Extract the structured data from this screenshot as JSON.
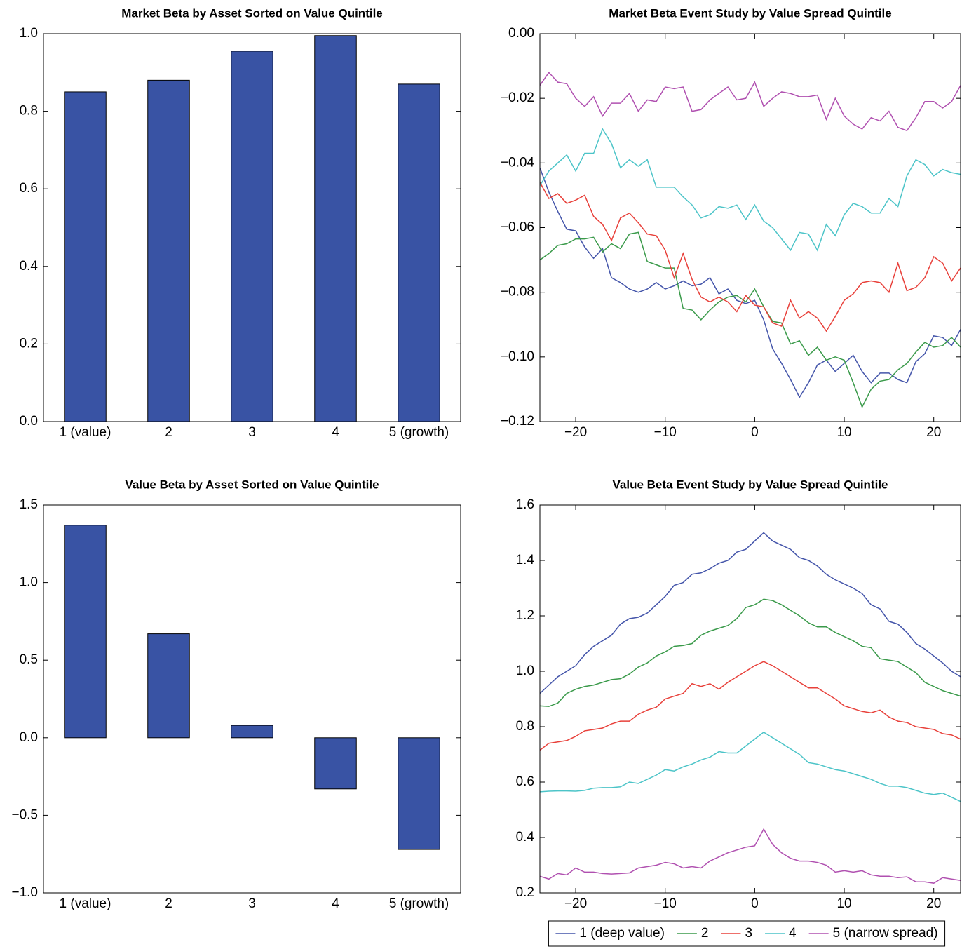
{
  "chart_data": [
    {
      "type": "bar",
      "title": "Market Beta by Asset Sorted on Value Quintile",
      "categories": [
        "1 (value)",
        "2",
        "3",
        "4",
        "5 (growth)"
      ],
      "values": [
        0.85,
        0.88,
        0.955,
        0.995,
        0.87
      ],
      "color": "#3953a4",
      "ylim": [
        0,
        1
      ],
      "yticks": [
        {
          "value": 0,
          "label": "0.0"
        },
        0.2,
        0.4,
        0.6,
        0.8,
        {
          "value": 1,
          "label": "1.0"
        }
      ]
    },
    {
      "type": "line",
      "title": "Market Beta Event Study by Value Spread Quintile",
      "x": [
        -24,
        -23,
        -22,
        -21,
        -20,
        -19,
        -18,
        -17,
        -16,
        -15,
        -14,
        -13,
        -12,
        -11,
        -10,
        -9,
        -8,
        -7,
        -6,
        -5,
        -4,
        -3,
        -2,
        -1,
        0,
        1,
        2,
        3,
        4,
        5,
        6,
        7,
        8,
        9,
        10,
        11,
        12,
        13,
        14,
        15,
        16,
        17,
        18,
        19,
        20,
        21,
        22,
        23
      ],
      "series": [
        {
          "color": "#4455aa",
          "values": [
            -0.0415,
            -0.049,
            -0.055,
            -0.0605,
            -0.061,
            -0.066,
            -0.0695,
            -0.0665,
            -0.0755,
            -0.077,
            -0.079,
            -0.08,
            -0.079,
            -0.077,
            -0.079,
            -0.078,
            -0.0765,
            -0.078,
            -0.0775,
            -0.0755,
            -0.0805,
            -0.079,
            -0.0825,
            -0.0835,
            -0.0825,
            -0.0885,
            -0.0975,
            -0.102,
            -0.107,
            -0.1125,
            -0.108,
            -0.1025,
            -0.101,
            -0.1045,
            -0.102,
            -0.0995,
            -0.1045,
            -0.108,
            -0.105,
            -0.105,
            -0.107,
            -0.108,
            -0.1015,
            -0.099,
            -0.0935,
            -0.094,
            -0.0965,
            -0.0915
          ]
        },
        {
          "color": "#3a9a4a",
          "values": [
            -0.07,
            -0.068,
            -0.0655,
            -0.065,
            -0.0635,
            -0.0635,
            -0.063,
            -0.0675,
            -0.065,
            -0.0665,
            -0.062,
            -0.0615,
            -0.0705,
            -0.0715,
            -0.0725,
            -0.0725,
            -0.085,
            -0.0855,
            -0.0885,
            -0.0855,
            -0.083,
            -0.0815,
            -0.081,
            -0.083,
            -0.079,
            -0.0845,
            -0.089,
            -0.0895,
            -0.096,
            -0.095,
            -0.0995,
            -0.097,
            -0.101,
            -0.1,
            -0.101,
            -0.108,
            -0.1155,
            -0.11,
            -0.1075,
            -0.107,
            -0.104,
            -0.102,
            -0.0985,
            -0.0955,
            -0.097,
            -0.0965,
            -0.094,
            -0.097
          ]
        },
        {
          "color": "#e8403a",
          "values": [
            -0.046,
            -0.051,
            -0.0495,
            -0.0525,
            -0.0515,
            -0.05,
            -0.0565,
            -0.059,
            -0.064,
            -0.057,
            -0.0555,
            -0.0585,
            -0.062,
            -0.0625,
            -0.067,
            -0.0755,
            -0.068,
            -0.076,
            -0.0815,
            -0.083,
            -0.0815,
            -0.083,
            -0.086,
            -0.081,
            -0.084,
            -0.0845,
            -0.0895,
            -0.0905,
            -0.0825,
            -0.088,
            -0.086,
            -0.088,
            -0.092,
            -0.0875,
            -0.0825,
            -0.0805,
            -0.077,
            -0.0765,
            -0.077,
            -0.08,
            -0.071,
            -0.0795,
            -0.0785,
            -0.0755,
            -0.069,
            -0.071,
            -0.0765,
            -0.0725
          ]
        },
        {
          "color": "#4cc4c8",
          "values": [
            -0.047,
            -0.0425,
            -0.04,
            -0.0375,
            -0.0425,
            -0.037,
            -0.037,
            -0.0295,
            -0.034,
            -0.0415,
            -0.039,
            -0.041,
            -0.039,
            -0.0475,
            -0.0475,
            -0.0475,
            -0.0505,
            -0.053,
            -0.057,
            -0.056,
            -0.0535,
            -0.054,
            -0.053,
            -0.0575,
            -0.053,
            -0.058,
            -0.06,
            -0.0635,
            -0.067,
            -0.0615,
            -0.062,
            -0.067,
            -0.059,
            -0.0625,
            -0.056,
            -0.0525,
            -0.0535,
            -0.0555,
            -0.0555,
            -0.051,
            -0.0535,
            -0.044,
            -0.039,
            -0.0405,
            -0.044,
            -0.042,
            -0.043,
            -0.0435
          ]
        },
        {
          "color": "#b050b0",
          "values": [
            -0.016,
            -0.012,
            -0.015,
            -0.0155,
            -0.02,
            -0.0225,
            -0.0195,
            -0.0255,
            -0.0215,
            -0.0215,
            -0.0185,
            -0.024,
            -0.0205,
            -0.021,
            -0.0165,
            -0.017,
            -0.0165,
            -0.024,
            -0.0235,
            -0.0205,
            -0.0185,
            -0.0165,
            -0.0205,
            -0.02,
            -0.015,
            -0.0225,
            -0.02,
            -0.018,
            -0.0185,
            -0.0195,
            -0.0195,
            -0.019,
            -0.0265,
            -0.02,
            -0.0255,
            -0.028,
            -0.0295,
            -0.026,
            -0.027,
            -0.024,
            -0.029,
            -0.03,
            -0.026,
            -0.021,
            -0.021,
            -0.023,
            -0.021,
            -0.016
          ]
        }
      ],
      "xlim": [
        -24,
        23
      ],
      "xticks": [
        {
          "value": -20,
          "label": "−20"
        },
        {
          "value": -10,
          "label": "−10"
        },
        0,
        10,
        20
      ],
      "ylim": [
        -0.12,
        0
      ],
      "yticks": [
        {
          "value": -0.12,
          "label": "−0.12"
        },
        {
          "value": -0.1,
          "label": "−0.10"
        },
        {
          "value": -0.08,
          "label": "−0.08"
        },
        {
          "value": -0.06,
          "label": "−0.06"
        },
        {
          "value": -0.04,
          "label": "−0.04"
        },
        {
          "value": -0.02,
          "label": "−0.02"
        },
        {
          "value": 0,
          "label": "0.00"
        }
      ]
    },
    {
      "type": "bar",
      "title": "Value Beta by Asset Sorted on Value Quintile",
      "categories": [
        "1 (value)",
        "2",
        "3",
        "4",
        "5 (growth)"
      ],
      "values": [
        1.37,
        0.67,
        0.08,
        -0.33,
        -0.72
      ],
      "color": "#3953a4",
      "ylim": [
        -1,
        1.5
      ],
      "yticks": [
        {
          "value": -1,
          "label": "−1.0"
        },
        {
          "value": -0.5,
          "label": "−0.5"
        },
        {
          "value": 0,
          "label": "0.0"
        },
        0.5,
        {
          "value": 1,
          "label": "1.0"
        },
        1.5
      ]
    },
    {
      "type": "line",
      "title": "Value Beta Event Study by Value Spread Quintile",
      "x": [
        -24,
        -23,
        -22,
        -21,
        -20,
        -19,
        -18,
        -17,
        -16,
        -15,
        -14,
        -13,
        -12,
        -11,
        -10,
        -9,
        -8,
        -7,
        -6,
        -5,
        -4,
        -3,
        -2,
        -1,
        0,
        1,
        2,
        3,
        4,
        5,
        6,
        7,
        8,
        9,
        10,
        11,
        12,
        13,
        14,
        15,
        16,
        17,
        18,
        19,
        20,
        21,
        22,
        23
      ],
      "series": [
        {
          "name": "1 (deep value)",
          "color": "#4455aa",
          "values": [
            0.92,
            0.95,
            0.98,
            1.0,
            1.02,
            1.06,
            1.09,
            1.11,
            1.13,
            1.17,
            1.19,
            1.195,
            1.21,
            1.24,
            1.27,
            1.31,
            1.32,
            1.35,
            1.355,
            1.37,
            1.39,
            1.4,
            1.43,
            1.44,
            1.47,
            1.5,
            1.47,
            1.455,
            1.44,
            1.41,
            1.4,
            1.38,
            1.35,
            1.33,
            1.315,
            1.3,
            1.28,
            1.24,
            1.225,
            1.18,
            1.17,
            1.14,
            1.1,
            1.08,
            1.055,
            1.03,
            1.0,
            0.98
          ]
        },
        {
          "name": "2",
          "color": "#3a9a4a",
          "values": [
            0.875,
            0.873,
            0.885,
            0.92,
            0.935,
            0.945,
            0.95,
            0.96,
            0.97,
            0.973,
            0.99,
            1.015,
            1.03,
            1.055,
            1.07,
            1.09,
            1.093,
            1.1,
            1.13,
            1.145,
            1.155,
            1.165,
            1.19,
            1.23,
            1.24,
            1.26,
            1.255,
            1.24,
            1.22,
            1.2,
            1.175,
            1.16,
            1.16,
            1.14,
            1.125,
            1.11,
            1.09,
            1.085,
            1.045,
            1.04,
            1.035,
            1.015,
            0.995,
            0.96,
            0.945,
            0.93,
            0.92,
            0.91
          ]
        },
        {
          "name": "3",
          "color": "#e8403a",
          "values": [
            0.715,
            0.74,
            0.745,
            0.75,
            0.765,
            0.785,
            0.79,
            0.795,
            0.81,
            0.82,
            0.82,
            0.845,
            0.86,
            0.87,
            0.9,
            0.91,
            0.92,
            0.955,
            0.945,
            0.955,
            0.935,
            0.96,
            0.98,
            1.0,
            1.02,
            1.035,
            1.02,
            1.0,
            0.98,
            0.96,
            0.94,
            0.94,
            0.92,
            0.9,
            0.875,
            0.865,
            0.855,
            0.85,
            0.86,
            0.835,
            0.82,
            0.815,
            0.8,
            0.795,
            0.79,
            0.775,
            0.77,
            0.755
          ]
        },
        {
          "name": "4",
          "color": "#4cc4c8",
          "values": [
            0.565,
            0.567,
            0.568,
            0.568,
            0.567,
            0.57,
            0.578,
            0.58,
            0.58,
            0.583,
            0.6,
            0.595,
            0.61,
            0.625,
            0.645,
            0.64,
            0.655,
            0.665,
            0.68,
            0.69,
            0.71,
            0.705,
            0.705,
            0.73,
            0.755,
            0.78,
            0.76,
            0.74,
            0.72,
            0.7,
            0.67,
            0.665,
            0.655,
            0.645,
            0.64,
            0.63,
            0.62,
            0.61,
            0.595,
            0.585,
            0.585,
            0.58,
            0.57,
            0.56,
            0.555,
            0.56,
            0.545,
            0.53
          ]
        },
        {
          "name": "5 (narrow spread)",
          "color": "#b050b0",
          "values": [
            0.26,
            0.25,
            0.27,
            0.265,
            0.29,
            0.275,
            0.275,
            0.27,
            0.268,
            0.27,
            0.272,
            0.29,
            0.295,
            0.3,
            0.31,
            0.305,
            0.29,
            0.295,
            0.29,
            0.315,
            0.33,
            0.345,
            0.355,
            0.365,
            0.37,
            0.43,
            0.375,
            0.345,
            0.325,
            0.315,
            0.315,
            0.31,
            0.3,
            0.275,
            0.28,
            0.275,
            0.28,
            0.265,
            0.26,
            0.26,
            0.255,
            0.258,
            0.24,
            0.24,
            0.235,
            0.255,
            0.25,
            0.245
          ]
        }
      ],
      "xlim": [
        -24,
        23
      ],
      "xticks": [
        {
          "value": -20,
          "label": "−20"
        },
        {
          "value": -10,
          "label": "−10"
        },
        0,
        10,
        20
      ],
      "ylim": [
        0.2,
        1.6
      ],
      "yticks": [
        0.2,
        0.4,
        0.6,
        0.8,
        {
          "value": 1,
          "label": "1.0"
        },
        1.2,
        1.4,
        1.6
      ],
      "legend": "bottom"
    }
  ]
}
